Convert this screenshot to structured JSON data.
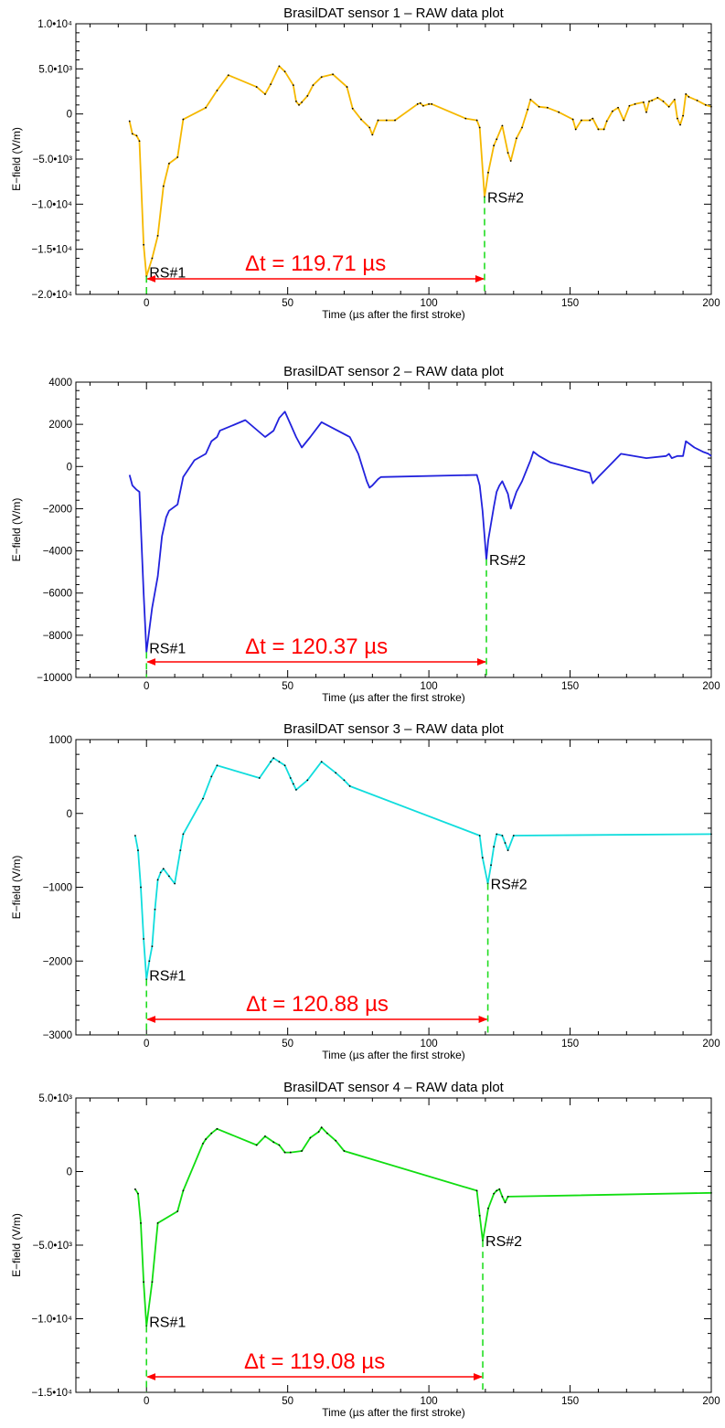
{
  "x_axis": {
    "label": "Time (µs after the first stroke)",
    "range": [
      -25,
      200
    ],
    "ticks": [
      0,
      50,
      100,
      150,
      200
    ],
    "tick_labels": [
      "0",
      "50",
      "100",
      "150",
      "200"
    ]
  },
  "colors": {
    "marker": "#22dd22",
    "arrow": "#ff0000",
    "annotation_text": "#ff0000",
    "dots": "#000000"
  },
  "chart_data": [
    {
      "type": "line",
      "title": "BrasilDAT sensor 1 – RAW data plot",
      "xlabel": "Time (µs after the first stroke)",
      "ylabel": "E−field (V/m)",
      "xlim": [
        -25,
        200
      ],
      "ylim": [
        -20000,
        10000
      ],
      "yticks": [
        -20000,
        -15000,
        -10000,
        -5000,
        0,
        5000,
        10000
      ],
      "ytick_labels": [
        "−2.0•10⁴",
        "−1.5•10⁴",
        "−1.0•10⁴",
        "−5.0•10³",
        "0",
        "5.0•10³",
        "1.0•10⁴"
      ],
      "color": "#f5b800",
      "show_dots": true,
      "rs_labels": [
        "RS#1",
        "RS#2"
      ],
      "rs1": {
        "x": 0,
        "y": -18000
      },
      "rs2": {
        "x": 119.71,
        "y": -9200
      },
      "dt_label": "Δt = 119.71 µs",
      "series": [
        {
          "x": [
            -6,
            -5,
            -3.5,
            -2.5,
            -1,
            0,
            2,
            4,
            6,
            8,
            11,
            13,
            21,
            25,
            29,
            39,
            42,
            44,
            47,
            49,
            52,
            53,
            54,
            55,
            57,
            59,
            62,
            66,
            71,
            73,
            76,
            79,
            80,
            82,
            85,
            88,
            96,
            97,
            98,
            100,
            101,
            113,
            117,
            118,
            119.71,
            121,
            123,
            124,
            126,
            128,
            129,
            131,
            133,
            135,
            136,
            139,
            142,
            146,
            151,
            152,
            154,
            157,
            158,
            160,
            162,
            163,
            165,
            167,
            169,
            171,
            173,
            176,
            177,
            178,
            179,
            181,
            183,
            185,
            187,
            188,
            189,
            190,
            191,
            192,
            195,
            198,
            200
          ],
          "y": [
            -800,
            -2200,
            -2400,
            -3000,
            -14500,
            -18000,
            -16000,
            -13500,
            -8000,
            -5500,
            -4800,
            -600,
            700,
            2600,
            4300,
            3000,
            2200,
            3300,
            5300,
            4700,
            3200,
            1400,
            1000,
            1300,
            2000,
            3200,
            4100,
            4400,
            3000,
            600,
            -600,
            -1500,
            -2300,
            -700,
            -700,
            -700,
            1100,
            1200,
            900,
            1100,
            1100,
            -500,
            -700,
            -1500,
            -9200,
            -6500,
            -3500,
            -2800,
            -1300,
            -4300,
            -5200,
            -2700,
            -1500,
            500,
            1600,
            800,
            700,
            200,
            -600,
            -1700,
            -700,
            -700,
            -500,
            -1700,
            -1700,
            -800,
            300,
            700,
            -700,
            900,
            1100,
            1300,
            200,
            1400,
            1500,
            1800,
            1400,
            800,
            1600,
            -500,
            -1200,
            -200,
            2200,
            1900,
            1500,
            1000,
            800
          ]
        }
      ]
    },
    {
      "type": "line",
      "title": "BrasilDAT sensor 2 – RAW data plot",
      "xlabel": "Time (µs after the first stroke)",
      "ylabel": "E−field (V/m)",
      "xlim": [
        -25,
        200
      ],
      "ylim": [
        -10000,
        4000
      ],
      "yticks": [
        -10000,
        -8000,
        -6000,
        -4000,
        -2000,
        0,
        2000,
        4000
      ],
      "ytick_labels": [
        "−10000",
        "−8000",
        "−6000",
        "−4000",
        "−2000",
        "0",
        "2000",
        "4000"
      ],
      "color": "#2222dd",
      "show_dots": false,
      "rs_labels": [
        "RS#1",
        "RS#2"
      ],
      "rs1": {
        "x": 0,
        "y": -8800
      },
      "rs2": {
        "x": 120.37,
        "y": -4400
      },
      "dt_label": "Δt = 120.37 µs",
      "series": [
        {
          "x": [
            -6,
            -5,
            -3.5,
            -2.5,
            -1,
            0,
            2,
            4,
            5.5,
            7,
            8,
            11,
            13,
            17,
            21,
            23,
            25,
            26,
            35,
            42,
            45,
            47,
            49,
            51,
            53,
            55,
            58,
            62,
            72,
            75,
            78,
            79,
            80,
            82,
            83,
            117,
            118,
            119,
            120.37,
            121,
            123,
            124,
            125,
            126,
            128,
            129,
            131,
            133,
            136,
            137,
            139,
            143,
            157,
            158,
            160,
            168,
            177,
            184,
            185,
            186,
            188,
            189,
            190,
            191,
            194,
            197,
            199,
            200
          ],
          "y": [
            -400,
            -900,
            -1100,
            -1200,
            -6000,
            -8800,
            -6700,
            -5200,
            -3300,
            -2400,
            -2100,
            -1800,
            -500,
            300,
            600,
            1200,
            1400,
            1700,
            2200,
            1400,
            1700,
            2300,
            2600,
            2000,
            1400,
            900,
            1400,
            2100,
            1400,
            600,
            -700,
            -1000,
            -900,
            -600,
            -500,
            -400,
            -900,
            -2100,
            -4400,
            -3500,
            -1900,
            -1200,
            -900,
            -700,
            -1300,
            -2000,
            -1200,
            -700,
            300,
            700,
            500,
            200,
            -300,
            -800,
            -500,
            600,
            400,
            500,
            600,
            400,
            500,
            500,
            500,
            1200,
            900,
            700,
            600,
            500
          ]
        }
      ]
    },
    {
      "type": "line",
      "title": "BrasilDAT sensor 3 – RAW data plot",
      "xlabel": "Time (µs after the first stroke)",
      "ylabel": "E−field (V/m)",
      "xlim": [
        -25,
        200
      ],
      "ylim": [
        -3000,
        1000
      ],
      "yticks": [
        -3000,
        -2000,
        -1000,
        0,
        1000
      ],
      "ytick_labels": [
        "−3000",
        "−2000",
        "−1000",
        "0",
        "1000"
      ],
      "color": "#11dddd",
      "show_dots": true,
      "rs_labels": [
        "RS#1",
        "RS#2"
      ],
      "rs1": {
        "x": 0,
        "y": -2250
      },
      "rs2": {
        "x": 120.88,
        "y": -950
      },
      "dt_label": "Δt = 120.88 µs",
      "series": [
        {
          "x": [
            -4,
            -3,
            -2,
            -1,
            0,
            1,
            2,
            3,
            4,
            5,
            6,
            8,
            10,
            12,
            13,
            20,
            23,
            25,
            40,
            44,
            45,
            47,
            49,
            51,
            52,
            53,
            57,
            62,
            67,
            70,
            72,
            118,
            119,
            120.88,
            122,
            123,
            124,
            126,
            127,
            128,
            130,
            200
          ],
          "y": [
            -300,
            -500,
            -1000,
            -1700,
            -2250,
            -2000,
            -1800,
            -1300,
            -900,
            -800,
            -750,
            -850,
            -950,
            -500,
            -280,
            200,
            500,
            650,
            480,
            700,
            750,
            700,
            650,
            480,
            400,
            320,
            450,
            700,
            550,
            450,
            370,
            -300,
            -600,
            -950,
            -700,
            -450,
            -280,
            -300,
            -400,
            -500,
            -300,
            -280
          ]
        }
      ]
    },
    {
      "type": "line",
      "title": "BrasilDAT sensor 4 – RAW data plot",
      "xlabel": "Time (µs after the first stroke)",
      "ylabel": "E−field (V/m)",
      "xlim": [
        -25,
        200
      ],
      "ylim": [
        -15000,
        5000
      ],
      "yticks": [
        -15000,
        -10000,
        -5000,
        0,
        5000
      ],
      "ytick_labels": [
        "−1.5•10⁴",
        "−1.0•10⁴",
        "−5.0•10³",
        "0",
        "5.0•10³"
      ],
      "color": "#11dd11",
      "show_dots": true,
      "rs_labels": [
        "RS#1",
        "RS#2"
      ],
      "rs1": {
        "x": 0,
        "y": -10500
      },
      "rs2": {
        "x": 119.08,
        "y": -4700
      },
      "dt_label": "Δt = 119.08 µs",
      "series": [
        {
          "x": [
            -4,
            -3,
            -2,
            -1,
            0,
            2,
            4,
            11,
            13,
            20,
            21,
            23,
            25,
            39,
            42,
            45,
            47,
            49,
            51,
            55,
            58,
            61,
            62,
            64,
            67,
            70,
            117,
            118,
            119.08,
            121,
            123,
            124,
            125,
            126,
            127,
            128,
            200
          ],
          "y": [
            -1200,
            -1500,
            -3500,
            -7500,
            -10500,
            -7500,
            -3500,
            -2700,
            -1300,
            1900,
            2200,
            2600,
            2900,
            1800,
            2400,
            2000,
            1800,
            1300,
            1300,
            1400,
            2300,
            2700,
            3000,
            2600,
            2100,
            1400,
            -1300,
            -3000,
            -4700,
            -2500,
            -1500,
            -1300,
            -1200,
            -1700,
            -2100,
            -1700,
            -1450
          ]
        }
      ]
    }
  ]
}
